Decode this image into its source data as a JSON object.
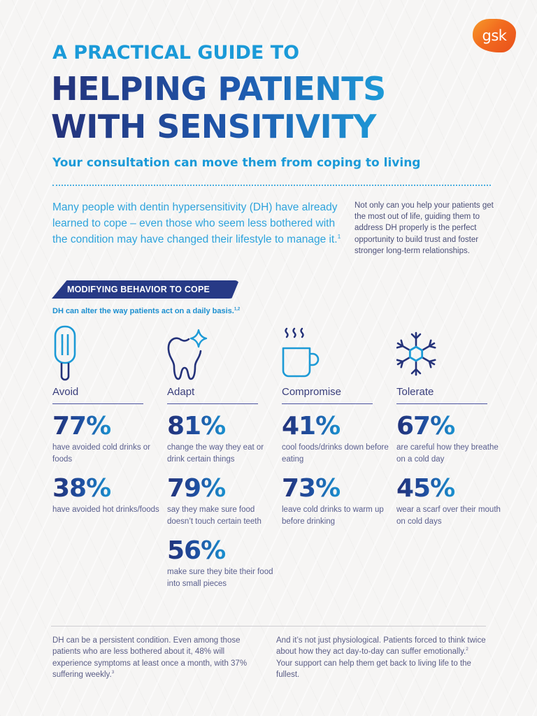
{
  "brand": {
    "logo_text": "gsk",
    "colors": {
      "logo_orange": "#f26b1f",
      "navy": "#24327a",
      "accent_blue": "#1b9ad8",
      "body_text": "#5a5f8e"
    }
  },
  "header": {
    "kicker": "A PRACTICAL GUIDE TO",
    "title_line1": "HELPING PATIENTS",
    "title_line2": "WITH SENSITIVITY",
    "subtitle": "Your consultation can move them from coping to living"
  },
  "intro": {
    "lead": "Many people with dentin hypersensitivity (DH) have already learned to cope – even those who seem less bothered with the condition may have changed their lifestyle to manage it.",
    "lead_ref": "1",
    "side": "Not only can you help your patients get the most out of life, guiding them to address DH properly is the perfect opportunity to build trust and foster stronger long-term relationships."
  },
  "section": {
    "banner": "MODIFYING BEHAVIOR TO COPE",
    "subheading": "DH can alter the way patients act on a daily basis.",
    "subheading_ref": "1,2"
  },
  "categories": [
    {
      "label": "Avoid",
      "icon": "popsicle-icon",
      "stats": [
        {
          "value": "77%",
          "desc": "have avoided cold drinks or foods"
        },
        {
          "value": "38%",
          "desc": "have avoided hot drinks/foods"
        }
      ]
    },
    {
      "label": "Adapt",
      "icon": "tooth-sparkle-icon",
      "stats": [
        {
          "value": "81%",
          "desc": "change the way they eat or drink certain things"
        },
        {
          "value": "79%",
          "desc": "say they make sure food doesn’t touch certain teeth"
        },
        {
          "value": "56%",
          "desc": "make sure they bite their food into small pieces"
        }
      ]
    },
    {
      "label": "Compromise",
      "icon": "hot-mug-icon",
      "stats": [
        {
          "value": "41%",
          "desc": "cool foods/drinks down before eating"
        },
        {
          "value": "73%",
          "desc": "leave cold drinks to warm up before drinking"
        }
      ]
    },
    {
      "label": "Tolerate",
      "icon": "snowflake-icon",
      "stats": [
        {
          "value": "67%",
          "desc": "are careful how they breathe on a cold day"
        },
        {
          "value": "45%",
          "desc": "wear a scarf over their mouth on cold days"
        }
      ]
    }
  ],
  "footer": {
    "left": "DH can be a persistent condition. Even among those patients who are less bothered about it, 48% will experience symptoms at least once a month, with 37% suffering weekly.",
    "left_ref": "3",
    "right_part1": "And it’s not just physiological. Patients forced to think twice about how they act day-to-day can suffer emotionally.",
    "right_ref": "2",
    "right_part2": " Your support can help them get back to living life to the fullest."
  }
}
